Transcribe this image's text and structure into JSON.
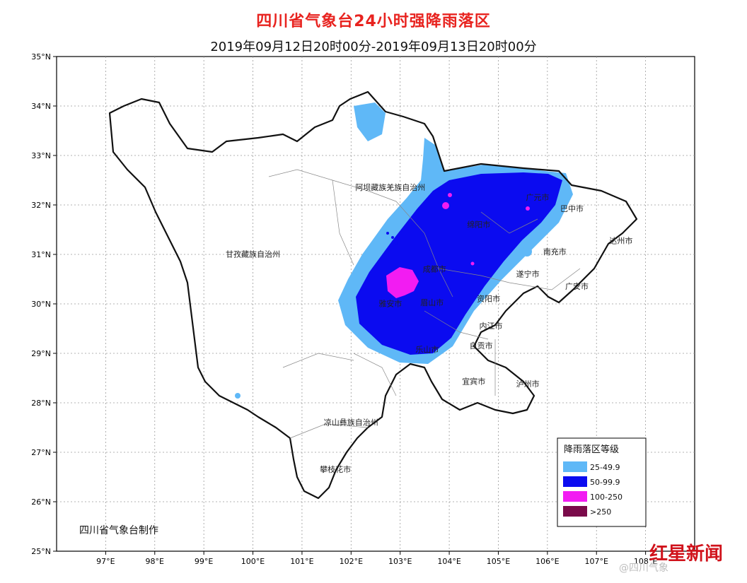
{
  "title": "四川省气象台24小时强降雨落区",
  "subtitle": "2019年09月12日20时00分-2019年09月13日20时00分",
  "credit": "四川省气象台制作",
  "lat_labels": [
    "35°N",
    "34°N",
    "33°N",
    "32°N",
    "31°N",
    "30°N",
    "29°N",
    "28°N",
    "27°N",
    "26°N",
    "25°N"
  ],
  "lon_labels": [
    "97°E",
    "98°E",
    "99°E",
    "100°E",
    "101°E",
    "102°E",
    "103°E",
    "104°E",
    "105°E",
    "106°E",
    "107°E",
    "108°E"
  ],
  "regions": [
    {
      "name": "阿坝藏族羌族自治州",
      "lon": 102.8,
      "lat": 32.3
    },
    {
      "name": "甘孜藏族自治州",
      "lon": 100.0,
      "lat": 30.95
    },
    {
      "name": "凉山彝族自治州",
      "lon": 102.0,
      "lat": 27.55
    }
  ],
  "cities": [
    {
      "name": "广元市",
      "lon": 105.8,
      "lat": 32.1
    },
    {
      "name": "巴中市",
      "lon": 106.5,
      "lat": 31.87
    },
    {
      "name": "绵阳市",
      "lon": 104.6,
      "lat": 31.55
    },
    {
      "name": "达州市",
      "lon": 107.5,
      "lat": 31.22
    },
    {
      "name": "南充市",
      "lon": 106.15,
      "lat": 31.0
    },
    {
      "name": "成都市",
      "lon": 103.7,
      "lat": 30.65
    },
    {
      "name": "遂宁市",
      "lon": 105.6,
      "lat": 30.55
    },
    {
      "name": "广安市",
      "lon": 106.6,
      "lat": 30.3
    },
    {
      "name": "雅安市",
      "lon": 102.8,
      "lat": 29.95
    },
    {
      "name": "眉山市",
      "lon": 103.65,
      "lat": 29.97
    },
    {
      "name": "资阳市",
      "lon": 104.8,
      "lat": 30.05
    },
    {
      "name": "内江市",
      "lon": 104.85,
      "lat": 29.5
    },
    {
      "name": "自贡市",
      "lon": 104.65,
      "lat": 29.1
    },
    {
      "name": "乐山市",
      "lon": 103.55,
      "lat": 29.02
    },
    {
      "name": "宜宾市",
      "lon": 104.5,
      "lat": 28.38
    },
    {
      "name": "泸州市",
      "lon": 105.6,
      "lat": 28.33
    },
    {
      "name": "攀枝花市",
      "lon": 101.68,
      "lat": 26.6
    }
  ],
  "legend": {
    "title": "降雨落区等级",
    "items": [
      {
        "label": "25-49.9",
        "color": "#5fb8f7"
      },
      {
        "label": "50-99.9",
        "color": "#0b0bf0"
      },
      {
        "label": "100-250",
        "color": "#f21cf2"
      },
      {
        "label": ">250",
        "color": "#7a0a4a"
      }
    ]
  },
  "watermark": {
    "brand": "红星新闻",
    "weibo": "@四川气象"
  }
}
